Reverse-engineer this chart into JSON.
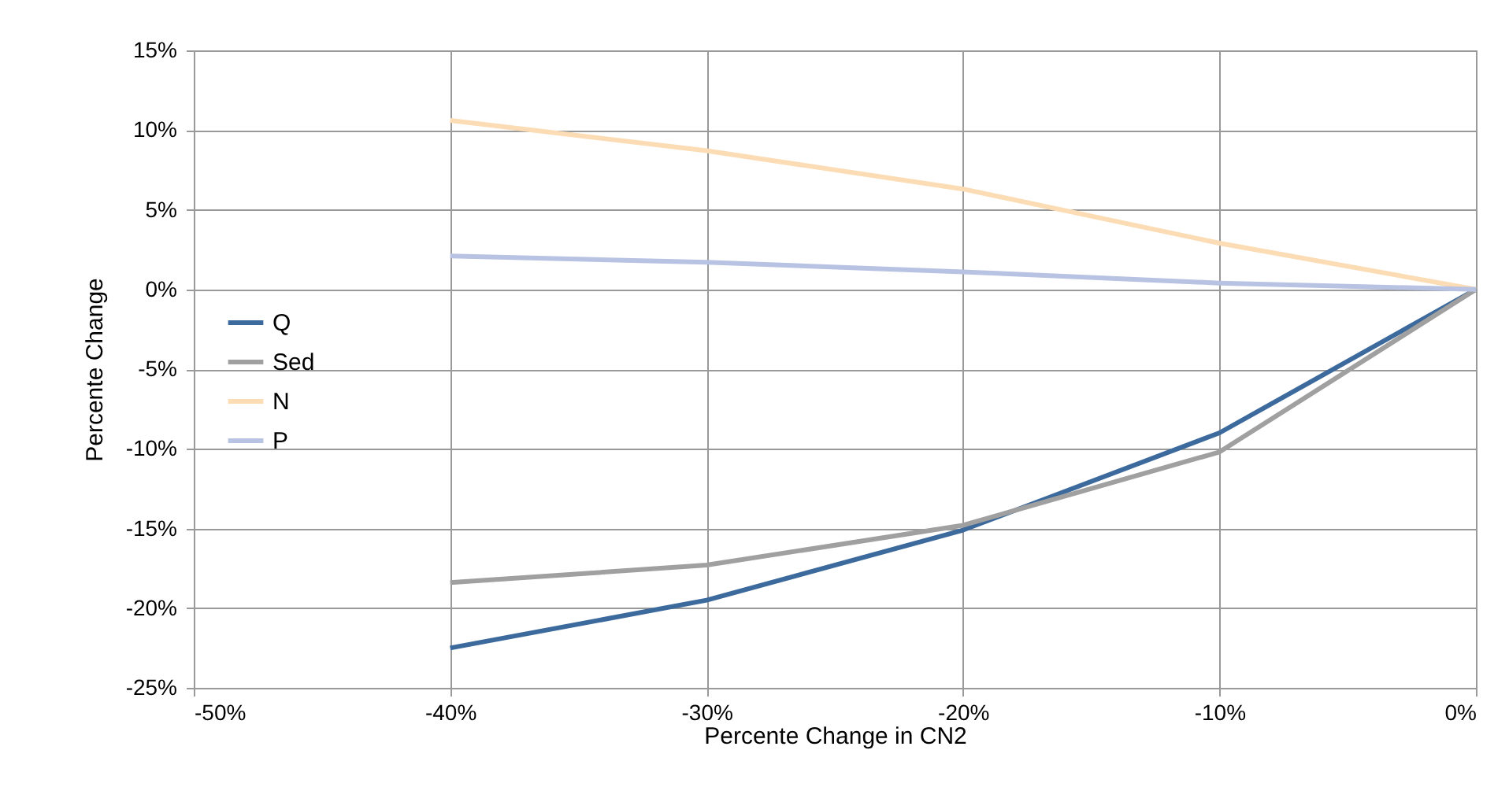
{
  "chart_data": {
    "type": "line",
    "xlabel": "Percente Change in CN2",
    "ylabel": "Percente Change",
    "x": [
      -40,
      -30,
      -20,
      -10,
      0
    ],
    "series": [
      {
        "name": "Q",
        "color": "#3d6a9c",
        "values": [
          -22.5,
          -19.5,
          -15.1,
          -9.0,
          0
        ]
      },
      {
        "name": "Sed",
        "color": "#a0a0a0",
        "values": [
          -18.4,
          -17.3,
          -14.8,
          -10.2,
          0
        ]
      },
      {
        "name": "N",
        "color": "#fbdcb4",
        "values": [
          10.6,
          8.7,
          6.3,
          2.9,
          0
        ]
      },
      {
        "name": "P",
        "color": "#b8c3e3",
        "values": [
          2.1,
          1.7,
          1.1,
          0.4,
          0
        ]
      }
    ],
    "xlim": [
      -50,
      0
    ],
    "xticks": [
      {
        "value": -50,
        "label": "-50%"
      },
      {
        "value": -40,
        "label": "-40%"
      },
      {
        "value": -30,
        "label": "-30%"
      },
      {
        "value": -20,
        "label": "-20%"
      },
      {
        "value": -10,
        "label": "-10%"
      },
      {
        "value": 0,
        "label": "0%"
      }
    ],
    "ylim": [
      -25,
      15
    ],
    "yticks": [
      {
        "value": -25,
        "label": "-25%"
      },
      {
        "value": -20,
        "label": "-20%"
      },
      {
        "value": -15,
        "label": "-15%"
      },
      {
        "value": -10,
        "label": "-10%"
      },
      {
        "value": -5,
        "label": "-5%"
      },
      {
        "value": 0,
        "label": "0%"
      },
      {
        "value": 5,
        "label": "5%"
      },
      {
        "value": 10,
        "label": "10%"
      },
      {
        "value": 15,
        "label": "15%"
      }
    ],
    "grid": true,
    "legend": "left",
    "marker": "none",
    "line_style": "solid"
  }
}
